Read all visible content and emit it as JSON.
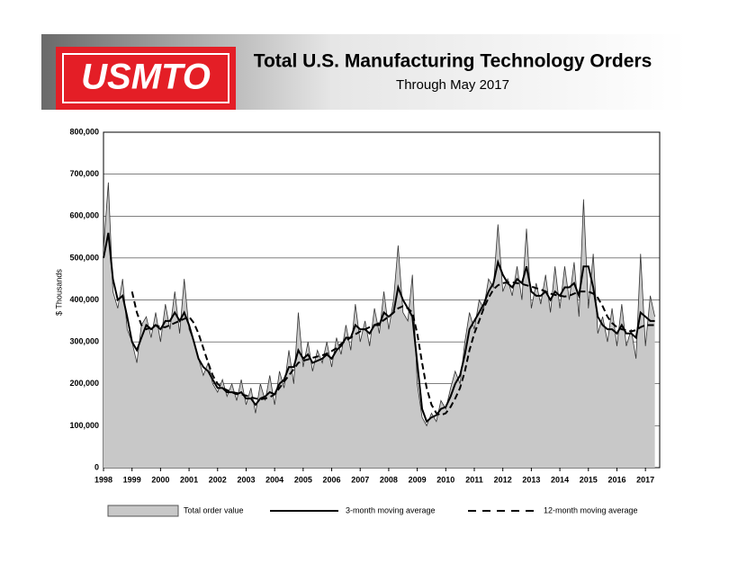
{
  "chart_data": {
    "type": "line",
    "logo_text": "USMTO",
    "title": "Total U.S. Manufacturing Technology Orders",
    "subtitle": "Through May 2017",
    "y_label": "$ Thousands",
    "grid": true,
    "xlim": [
      1998,
      2017.5
    ],
    "xticks": [
      1998,
      1999,
      2000,
      2001,
      2002,
      2003,
      2004,
      2005,
      2006,
      2007,
      2008,
      2009,
      2010,
      2011,
      2012,
      2013,
      2014,
      2015,
      2016,
      2017
    ],
    "ylim": [
      0,
      800000
    ],
    "yticks": [
      0,
      {
        "value": 100000,
        "label": "100,000"
      },
      {
        "value": 200000,
        "label": "200,000"
      },
      {
        "value": 300000,
        "label": "300,000"
      },
      {
        "value": 400000,
        "label": "400,000"
      },
      {
        "value": 500000,
        "label": "500,000"
      },
      {
        "value": 600000,
        "label": "600,000"
      },
      {
        "value": 700000,
        "label": "700,000"
      },
      {
        "value": 800000,
        "label": "800,000"
      }
    ],
    "x": [
      1998,
      1998.17,
      1998.33,
      1998.5,
      1998.67,
      1998.83,
      1999,
      1999.17,
      1999.33,
      1999.5,
      1999.67,
      1999.83,
      2000,
      2000.17,
      2000.33,
      2000.5,
      2000.67,
      2000.83,
      2001,
      2001.17,
      2001.33,
      2001.5,
      2001.67,
      2001.83,
      2002,
      2002.17,
      2002.33,
      2002.5,
      2002.67,
      2002.83,
      2003,
      2003.17,
      2003.33,
      2003.5,
      2003.67,
      2003.83,
      2004,
      2004.17,
      2004.33,
      2004.5,
      2004.67,
      2004.83,
      2005,
      2005.17,
      2005.33,
      2005.5,
      2005.67,
      2005.83,
      2006,
      2006.17,
      2006.33,
      2006.5,
      2006.67,
      2006.83,
      2007,
      2007.17,
      2007.33,
      2007.5,
      2007.67,
      2007.83,
      2008,
      2008.17,
      2008.33,
      2008.5,
      2008.67,
      2008.83,
      2009,
      2009.17,
      2009.33,
      2009.5,
      2009.67,
      2009.83,
      2010,
      2010.17,
      2010.33,
      2010.5,
      2010.67,
      2010.83,
      2011,
      2011.17,
      2011.33,
      2011.5,
      2011.67,
      2011.83,
      2012,
      2012.17,
      2012.33,
      2012.5,
      2012.67,
      2012.83,
      2013,
      2013.17,
      2013.33,
      2013.5,
      2013.67,
      2013.83,
      2014,
      2014.17,
      2014.33,
      2014.5,
      2014.67,
      2014.83,
      2015,
      2015.17,
      2015.33,
      2015.5,
      2015.67,
      2015.83,
      2016,
      2016.17,
      2016.33,
      2016.5,
      2016.67,
      2016.83,
      2017,
      2017.17,
      2017.33
    ],
    "series": [
      {
        "name": "Total order value",
        "style": "area",
        "color": "#c8c8c8",
        "values": [
          520000,
          680000,
          420000,
          380000,
          450000,
          330000,
          300000,
          250000,
          340000,
          360000,
          310000,
          370000,
          300000,
          390000,
          330000,
          420000,
          320000,
          450000,
          330000,
          300000,
          260000,
          220000,
          250000,
          200000,
          180000,
          210000,
          170000,
          200000,
          160000,
          210000,
          150000,
          190000,
          130000,
          200000,
          160000,
          220000,
          150000,
          230000,
          190000,
          280000,
          200000,
          370000,
          240000,
          300000,
          230000,
          280000,
          250000,
          300000,
          240000,
          310000,
          270000,
          340000,
          280000,
          390000,
          300000,
          350000,
          290000,
          380000,
          320000,
          420000,
          330000,
          400000,
          530000,
          370000,
          350000,
          460000,
          200000,
          120000,
          100000,
          130000,
          110000,
          160000,
          140000,
          190000,
          230000,
          200000,
          300000,
          370000,
          330000,
          400000,
          380000,
          450000,
          430000,
          580000,
          420000,
          450000,
          410000,
          480000,
          400000,
          570000,
          380000,
          440000,
          390000,
          460000,
          370000,
          480000,
          380000,
          480000,
          400000,
          490000,
          360000,
          640000,
          380000,
          510000,
          320000,
          360000,
          300000,
          380000,
          290000,
          390000,
          290000,
          330000,
          260000,
          510000,
          290000,
          410000,
          360000
        ]
      },
      {
        "name": "3-month moving average",
        "style": "solid",
        "color": "#000000",
        "values": [
          500000,
          560000,
          450000,
          400000,
          410000,
          360000,
          300000,
          280000,
          310000,
          340000,
          330000,
          340000,
          330000,
          350000,
          350000,
          370000,
          350000,
          370000,
          340000,
          300000,
          260000,
          240000,
          230000,
          210000,
          190000,
          190000,
          180000,
          180000,
          175000,
          180000,
          165000,
          165000,
          150000,
          165000,
          170000,
          180000,
          175000,
          200000,
          210000,
          240000,
          240000,
          280000,
          260000,
          270000,
          250000,
          255000,
          260000,
          270000,
          260000,
          280000,
          290000,
          310000,
          310000,
          340000,
          330000,
          330000,
          320000,
          340000,
          340000,
          370000,
          360000,
          370000,
          430000,
          400000,
          380000,
          360000,
          250000,
          140000,
          110000,
          120000,
          125000,
          140000,
          145000,
          170000,
          200000,
          220000,
          270000,
          330000,
          350000,
          370000,
          390000,
          420000,
          440000,
          490000,
          460000,
          440000,
          430000,
          450000,
          440000,
          480000,
          420000,
          410000,
          410000,
          420000,
          400000,
          420000,
          410000,
          430000,
          430000,
          440000,
          410000,
          480000,
          480000,
          430000,
          360000,
          340000,
          330000,
          330000,
          320000,
          340000,
          320000,
          320000,
          310000,
          370000,
          360000,
          350000,
          350000
        ]
      },
      {
        "name": "12-month moving average",
        "style": "dashed",
        "color": "#000000",
        "values": [
          null,
          null,
          null,
          null,
          null,
          null,
          420000,
          370000,
          340000,
          330000,
          335000,
          340000,
          335000,
          335000,
          340000,
          345000,
          350000,
          355000,
          360000,
          345000,
          320000,
          285000,
          250000,
          220000,
          200000,
          190000,
          185000,
          180000,
          178000,
          175000,
          172000,
          168000,
          165000,
          163000,
          165000,
          168000,
          175000,
          190000,
          205000,
          220000,
          235000,
          250000,
          255000,
          258000,
          262000,
          265000,
          268000,
          272000,
          278000,
          285000,
          295000,
          303000,
          310000,
          318000,
          325000,
          330000,
          335000,
          340000,
          345000,
          352000,
          360000,
          370000,
          380000,
          385000,
          380000,
          370000,
          320000,
          250000,
          190000,
          150000,
          130000,
          125000,
          130000,
          145000,
          165000,
          190000,
          230000,
          280000,
          320000,
          350000,
          380000,
          405000,
          425000,
          435000,
          440000,
          442000,
          442000,
          440000,
          438000,
          435000,
          432000,
          428000,
          425000,
          420000,
          415000,
          412000,
          410000,
          408000,
          410000,
          415000,
          420000,
          420000,
          420000,
          415000,
          405000,
          385000,
          360000,
          345000,
          335000,
          330000,
          328000,
          325000,
          328000,
          335000,
          340000,
          340000,
          340000
        ]
      }
    ]
  }
}
